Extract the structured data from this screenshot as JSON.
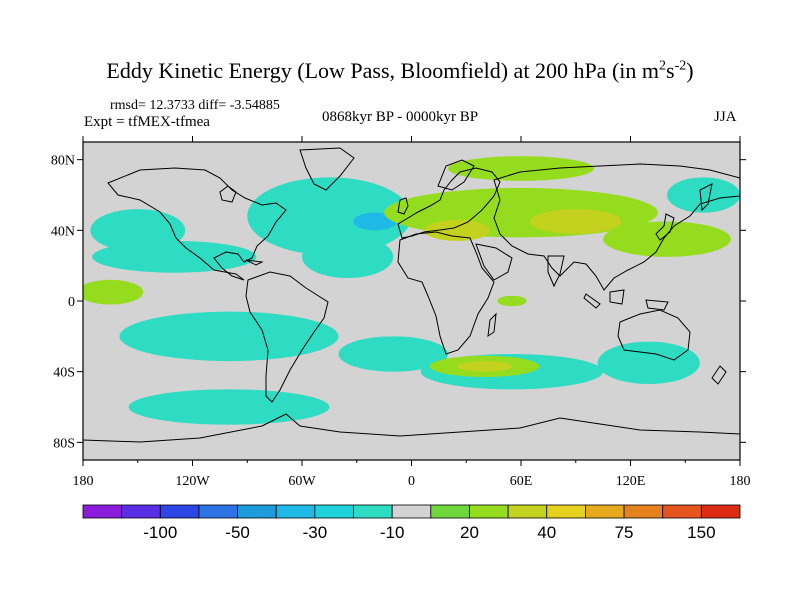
{
  "title": {
    "main": "Eddy Kinetic Energy (Low Pass, Bloomfield) at 200 hPa (in m",
    "sup1": "2",
    "mid": "s",
    "sup2": "-2",
    "end": ")"
  },
  "stats": "rmsd= 12.3733 diff= -3.54885",
  "experiment": "Expt = tfMEX-tfmea",
  "period": "0868kyr BP - 0000kyr BP",
  "season": "JJA",
  "map": {
    "projection": "cylindrical-equidistant",
    "lon_range": [
      -180,
      180
    ],
    "lat_range": [
      -90,
      90
    ],
    "x_ticks": [
      {
        "lon": -180,
        "label": "180"
      },
      {
        "lon": -120,
        "label": "120W"
      },
      {
        "lon": -60,
        "label": "60W"
      },
      {
        "lon": 0,
        "label": "0"
      },
      {
        "lon": 60,
        "label": "60E"
      },
      {
        "lon": 120,
        "label": "120E"
      },
      {
        "lon": 180,
        "label": "180"
      }
    ],
    "y_ticks": [
      {
        "lat": 80,
        "label": "80N"
      },
      {
        "lat": 40,
        "label": "40N"
      },
      {
        "lat": 0,
        "label": "0"
      },
      {
        "lat": -40,
        "label": "40S"
      },
      {
        "lat": -80,
        "label": "80S"
      }
    ],
    "background_color": "#d3d3d3",
    "regions": [
      {
        "name": "n-pacific-cyan",
        "lon": -150,
        "lat": 40,
        "rlon": 26,
        "rlat": 12,
        "level": -20
      },
      {
        "name": "n-atlantic-cyan",
        "lon": -45,
        "lat": 48,
        "rlon": 45,
        "rlat": 22,
        "level": -20
      },
      {
        "name": "n-atlantic-core",
        "lon": -20,
        "lat": 45,
        "rlon": 12,
        "rlat": 5,
        "level": -40
      },
      {
        "name": "subtrop-band-cyan",
        "lon": -130,
        "lat": 25,
        "rlon": 45,
        "rlat": 9,
        "level": -20
      },
      {
        "name": "central-atlantic-cyan",
        "lon": -35,
        "lat": 25,
        "rlon": 25,
        "rlat": 12,
        "level": -20
      },
      {
        "name": "s-pacific-cyan",
        "lon": -100,
        "lat": -20,
        "rlon": 60,
        "rlat": 14,
        "level": -20
      },
      {
        "name": "s-atlantic-cyan",
        "lon": -10,
        "lat": -30,
        "rlon": 30,
        "rlat": 10,
        "level": -20
      },
      {
        "name": "s-indian-cyan",
        "lon": 55,
        "lat": -40,
        "rlon": 50,
        "rlat": 10,
        "level": -20
      },
      {
        "name": "southern-ocean-cyan",
        "lon": -100,
        "lat": -60,
        "rlon": 55,
        "rlat": 10,
        "level": -20
      },
      {
        "name": "australia-cyan",
        "lon": 130,
        "lat": -35,
        "rlon": 28,
        "rlat": 12,
        "level": -20
      },
      {
        "name": "nw-pacific-cyan",
        "lon": 160,
        "lat": 60,
        "rlon": 20,
        "rlat": 10,
        "level": -20
      },
      {
        "name": "eurasia-green",
        "lon": 60,
        "lat": 50,
        "rlon": 75,
        "rlat": 14,
        "level": 20
      },
      {
        "name": "arctic-green",
        "lon": 60,
        "lat": 75,
        "rlon": 40,
        "rlat": 7,
        "level": 20
      },
      {
        "name": "asia-yellow-green",
        "lon": 90,
        "lat": 45,
        "rlon": 25,
        "rlat": 7,
        "level": 30
      },
      {
        "name": "mediterranean-yellow",
        "lon": 25,
        "lat": 40,
        "rlon": 18,
        "rlat": 6,
        "level": 30
      },
      {
        "name": "n-pacific-green",
        "lon": 140,
        "lat": 35,
        "rlon": 35,
        "rlat": 10,
        "level": 20
      },
      {
        "name": "e-pacific-green",
        "lon": -165,
        "lat": 5,
        "rlon": 18,
        "rlat": 7,
        "level": 20
      },
      {
        "name": "africa-green",
        "lon": 55,
        "lat": 0,
        "rlon": 8,
        "rlat": 3,
        "level": 20
      },
      {
        "name": "s-indian-green",
        "lon": 40,
        "lat": -37,
        "rlon": 30,
        "rlat": 6,
        "level": 20
      },
      {
        "name": "s-indian-yellow",
        "lon": 40,
        "lat": -37,
        "rlon": 15,
        "rlat": 3,
        "level": 30
      }
    ]
  },
  "colorbar": {
    "colors": [
      "#8c1cdc",
      "#5a2de6",
      "#2d46e6",
      "#2d73e6",
      "#1e9bdc",
      "#1eb9e6",
      "#1ed2dc",
      "#2ddcc3",
      "#d3d3d3",
      "#6ed73c",
      "#96dc1e",
      "#c3d21e",
      "#e6d21e",
      "#e6aa1e",
      "#e6821e",
      "#e6551e",
      "#dc2d14"
    ],
    "labels": [
      {
        "text": "-100",
        "after_box": 2
      },
      {
        "text": "-50",
        "after_box": 4
      },
      {
        "text": "-30",
        "after_box": 6
      },
      {
        "text": "-10",
        "after_box": 8
      },
      {
        "text": "20",
        "after_box": 10
      },
      {
        "text": "40",
        "after_box": 12
      },
      {
        "text": "75",
        "after_box": 14
      },
      {
        "text": "150",
        "after_box": 16
      }
    ]
  }
}
